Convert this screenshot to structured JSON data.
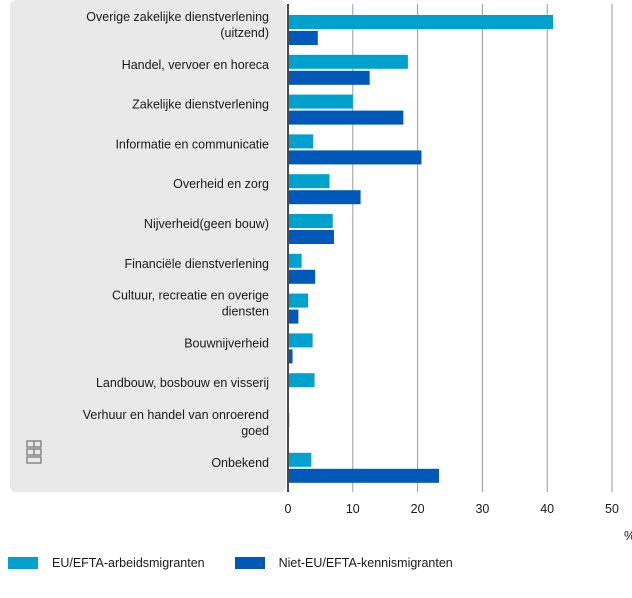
{
  "chart_data": {
    "type": "bar",
    "orientation": "horizontal",
    "categories": [
      [
        "Overige zakelijke dienstverlening",
        "(uitzend)"
      ],
      [
        "Handel, vervoer en horeca"
      ],
      [
        "Zakelijke dienstverlening"
      ],
      [
        "Informatie en communicatie"
      ],
      [
        "Overheid en zorg"
      ],
      [
        "Nijverheid(geen bouw)"
      ],
      [
        "Financiële dienstverlening"
      ],
      [
        "Cultuur, recreatie en overige",
        "diensten"
      ],
      [
        "Bouwnijverheid"
      ],
      [
        "Landbouw, bosbouw en visserij"
      ],
      [
        "Verhuur en handel van onroerend",
        "goed"
      ],
      [
        "Onbekend"
      ]
    ],
    "series": [
      {
        "name": "EU/EFTA-arbeidsmigranten",
        "color": "#00a1cd",
        "values": [
          40.9,
          18.5,
          10.0,
          3.9,
          6.4,
          6.9,
          2.1,
          3.1,
          3.8,
          4.1,
          0.2,
          3.6
        ]
      },
      {
        "name": "Niet-EU/EFTA-kennismigranten",
        "color": "#0058b8",
        "values": [
          4.6,
          12.6,
          17.8,
          20.6,
          11.2,
          7.1,
          4.2,
          1.6,
          0.7,
          0,
          0,
          23.3
        ]
      }
    ],
    "xlim": [
      0,
      50
    ],
    "xticks": [
      0,
      10,
      20,
      30,
      40,
      50
    ],
    "xlabel": "%",
    "grid": true,
    "legend_position": "bottom-left",
    "logo": "cbs"
  },
  "legend": {
    "items": [
      {
        "label": "EU/EFTA-arbeidsmigranten",
        "color": "#00a1cd"
      },
      {
        "label": "Niet-EU/EFTA-kennismigranten",
        "color": "#0058b8"
      }
    ]
  }
}
